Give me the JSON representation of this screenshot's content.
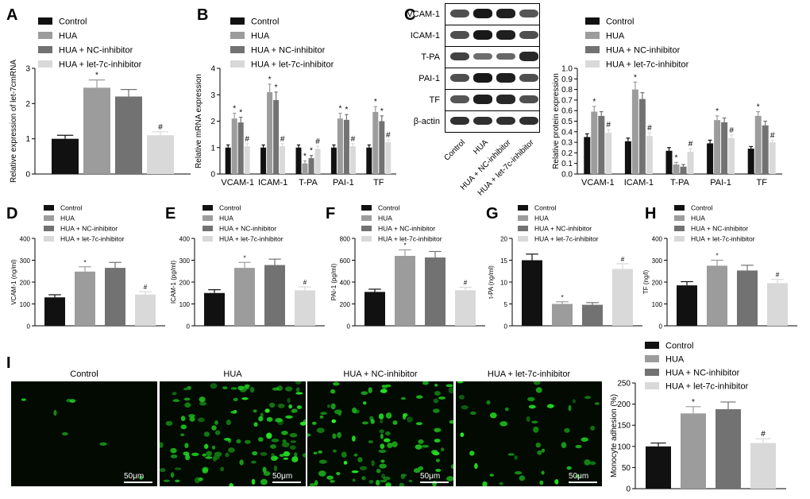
{
  "colors": {
    "Control": "#111111",
    "HUA": "#9c9c9c",
    "HUA + NC-inhibitor": "#727272",
    "HUA + let-7c-inhibitor": "#d9d9d9"
  },
  "series_names": [
    "Control",
    "HUA",
    "HUA + NC-inhibitor",
    "HUA + let-7c-inhibitor"
  ],
  "panel_letters": {
    "A": "A",
    "B": "B",
    "C": "C",
    "D": "D",
    "E": "E",
    "F": "F",
    "G": "G",
    "H": "H",
    "I": "I"
  },
  "blot": {
    "proteins": [
      "VCAM-1",
      "ICAM-1",
      "T-PA",
      "PAI-1",
      "TF",
      "β-actin"
    ],
    "lanes": [
      "Control",
      "HUA",
      "HUA + NC-inhibitor",
      "HUA + let-7c-inhibitor"
    ],
    "intensity": [
      [
        0.6,
        0.95,
        0.9,
        0.55
      ],
      [
        0.6,
        0.95,
        0.9,
        0.6
      ],
      [
        0.7,
        0.4,
        0.45,
        0.85
      ],
      [
        0.6,
        0.95,
        0.9,
        0.6
      ],
      [
        0.55,
        0.9,
        0.85,
        0.6
      ],
      [
        0.8,
        0.8,
        0.8,
        0.8
      ]
    ]
  },
  "micro": {
    "titles": [
      "Control",
      "HUA",
      "HUA + NC-inhibitor",
      "HUA + let-7c-inhibitor"
    ],
    "scale": "50μm",
    "cell_density": [
      0.05,
      0.9,
      0.8,
      0.35
    ]
  },
  "chart_data": [
    {
      "id": "A",
      "type": "bar",
      "ylabel": "Relative expression of let-7cmRNA",
      "ylim": [
        0,
        3
      ],
      "yticks": [
        0,
        1,
        2,
        3
      ],
      "categories": [
        ""
      ],
      "series": [
        {
          "name": "Control",
          "values": [
            1.0
          ],
          "err": [
            0.1
          ]
        },
        {
          "name": "HUA",
          "values": [
            2.45
          ],
          "err": [
            0.22
          ]
        },
        {
          "name": "HUA + NC-inhibitor",
          "values": [
            2.2
          ],
          "err": [
            0.2
          ]
        },
        {
          "name": "HUA + let-7c-inhibitor",
          "values": [
            1.1
          ],
          "err": [
            0.1
          ]
        }
      ],
      "annotations": [
        "",
        "*",
        "",
        "#"
      ]
    },
    {
      "id": "B",
      "type": "bar",
      "ylabel": "Relative mRNA expression",
      "ylim": [
        0,
        4
      ],
      "yticks": [
        0,
        1,
        2,
        3,
        4
      ],
      "categories": [
        "VCAM-1",
        "ICAM-1",
        "T-PA",
        "PAI-1",
        "TF"
      ],
      "series": [
        {
          "name": "Control",
          "values": [
            1.0,
            1.0,
            1.0,
            1.0,
            1.0
          ],
          "err": [
            0.1,
            0.1,
            0.1,
            0.1,
            0.1
          ]
        },
        {
          "name": "HUA",
          "values": [
            2.1,
            3.1,
            0.4,
            2.1,
            2.35
          ],
          "err": [
            0.2,
            0.3,
            0.1,
            0.2,
            0.2
          ]
        },
        {
          "name": "HUA + NC-inhibitor",
          "values": [
            1.95,
            2.8,
            0.6,
            2.05,
            2.0
          ],
          "err": [
            0.2,
            0.3,
            0.1,
            0.2,
            0.2
          ]
        },
        {
          "name": "HUA + let-7c-inhibitor",
          "values": [
            1.05,
            1.05,
            0.95,
            1.05,
            1.2
          ],
          "err": [
            0.1,
            0.1,
            0.1,
            0.1,
            0.1
          ]
        }
      ],
      "annotations": [
        "",
        "*",
        "*",
        "#"
      ]
    },
    {
      "id": "C",
      "type": "bar",
      "ylabel": "Relative protein expression",
      "ylim": [
        0,
        1.0
      ],
      "yticks": [
        0.0,
        0.1,
        0.2,
        0.3,
        0.4,
        0.5,
        0.6,
        0.7,
        0.8,
        0.9,
        1.0
      ],
      "categories": [
        "VCAM-1",
        "ICAM-1",
        "T-PA",
        "PAI-1",
        "TF"
      ],
      "series": [
        {
          "name": "Control",
          "values": [
            0.35,
            0.31,
            0.22,
            0.29,
            0.24
          ],
          "err": [
            0.03,
            0.03,
            0.03,
            0.03,
            0.02
          ]
        },
        {
          "name": "HUA",
          "values": [
            0.59,
            0.8,
            0.09,
            0.51,
            0.55
          ],
          "err": [
            0.05,
            0.07,
            0.02,
            0.04,
            0.04
          ]
        },
        {
          "name": "HUA + NC-inhibitor",
          "values": [
            0.55,
            0.71,
            0.07,
            0.49,
            0.46
          ],
          "err": [
            0.04,
            0.06,
            0.02,
            0.04,
            0.04
          ]
        },
        {
          "name": "HUA + let-7c-inhibitor",
          "values": [
            0.39,
            0.36,
            0.21,
            0.34,
            0.3
          ],
          "err": [
            0.03,
            0.03,
            0.03,
            0.03,
            0.02
          ]
        }
      ],
      "annotations": [
        "",
        "*",
        "",
        "#"
      ]
    },
    {
      "id": "D",
      "type": "bar",
      "ylabel": "VCAM-1 (ng/ml)",
      "ylim": [
        0,
        400
      ],
      "yticks": [
        0,
        100,
        200,
        300,
        400
      ],
      "categories": [
        ""
      ],
      "series": [
        {
          "name": "Control",
          "values": [
            130
          ],
          "err": [
            12
          ]
        },
        {
          "name": "HUA",
          "values": [
            248
          ],
          "err": [
            22
          ]
        },
        {
          "name": "HUA + NC-inhibitor",
          "values": [
            265
          ],
          "err": [
            25
          ]
        },
        {
          "name": "HUA + let-7c-inhibitor",
          "values": [
            143
          ],
          "err": [
            13
          ]
        }
      ],
      "annotations": [
        "",
        "*",
        "",
        "#"
      ]
    },
    {
      "id": "E",
      "type": "bar",
      "ylabel": "ICAM-1 (pg/ml)",
      "ylim": [
        0,
        400
      ],
      "yticks": [
        0,
        100,
        200,
        300,
        400
      ],
      "categories": [
        ""
      ],
      "series": [
        {
          "name": "Control",
          "values": [
            150
          ],
          "err": [
            15
          ]
        },
        {
          "name": "HUA",
          "values": [
            265
          ],
          "err": [
            25
          ]
        },
        {
          "name": "HUA + NC-inhibitor",
          "values": [
            278
          ],
          "err": [
            27
          ]
        },
        {
          "name": "HUA + let-7c-inhibitor",
          "values": [
            162
          ],
          "err": [
            16
          ]
        }
      ],
      "annotations": [
        "",
        "*",
        "",
        "#"
      ]
    },
    {
      "id": "F",
      "type": "bar",
      "ylabel": "PAI-1 (pg/ml)",
      "ylim": [
        0,
        800
      ],
      "yticks": [
        0,
        200,
        400,
        600,
        800
      ],
      "categories": [
        ""
      ],
      "series": [
        {
          "name": "Control",
          "values": [
            310
          ],
          "err": [
            25
          ]
        },
        {
          "name": "HUA",
          "values": [
            640
          ],
          "err": [
            55
          ]
        },
        {
          "name": "HUA + NC-inhibitor",
          "values": [
            625
          ],
          "err": [
            55
          ]
        },
        {
          "name": "HUA + let-7c-inhibitor",
          "values": [
            325
          ],
          "err": [
            28
          ]
        }
      ],
      "annotations": [
        "",
        "*",
        "",
        "#"
      ]
    },
    {
      "id": "G",
      "type": "bar",
      "ylabel": "t-PA (ng/ml)",
      "ylim": [
        0,
        20
      ],
      "yticks": [
        0,
        5,
        10,
        15,
        20
      ],
      "categories": [
        ""
      ],
      "series": [
        {
          "name": "Control",
          "values": [
            15.0
          ],
          "err": [
            1.4
          ]
        },
        {
          "name": "HUA",
          "values": [
            5.0
          ],
          "err": [
            0.5
          ]
        },
        {
          "name": "HUA + NC-inhibitor",
          "values": [
            4.8
          ],
          "err": [
            0.5
          ]
        },
        {
          "name": "HUA + let-7c-inhibitor",
          "values": [
            13.0
          ],
          "err": [
            1.2
          ]
        }
      ],
      "annotations": [
        "",
        "*",
        "",
        "#"
      ]
    },
    {
      "id": "H",
      "type": "bar",
      "ylabel": "TF (ng/l)",
      "ylim": [
        0,
        400
      ],
      "yticks": [
        0,
        100,
        200,
        300,
        400
      ],
      "categories": [
        ""
      ],
      "series": [
        {
          "name": "Control",
          "values": [
            185
          ],
          "err": [
            17
          ]
        },
        {
          "name": "HUA",
          "values": [
            275
          ],
          "err": [
            25
          ]
        },
        {
          "name": "HUA + NC-inhibitor",
          "values": [
            253
          ],
          "err": [
            24
          ]
        },
        {
          "name": "HUA + let-7c-inhibitor",
          "values": [
            195
          ],
          "err": [
            17
          ]
        }
      ],
      "annotations": [
        "",
        "*",
        "",
        "#"
      ]
    },
    {
      "id": "I",
      "type": "bar",
      "ylabel": "Monocyte adhesion (%)",
      "ylim": [
        0,
        250
      ],
      "yticks": [
        0,
        50,
        100,
        150,
        200,
        250
      ],
      "categories": [
        ""
      ],
      "series": [
        {
          "name": "Control",
          "values": [
            100
          ],
          "err": [
            8
          ]
        },
        {
          "name": "HUA",
          "values": [
            178
          ],
          "err": [
            16
          ]
        },
        {
          "name": "HUA + NC-inhibitor",
          "values": [
            188
          ],
          "err": [
            17
          ]
        },
        {
          "name": "HUA + let-7c-inhibitor",
          "values": [
            108
          ],
          "err": [
            10
          ]
        }
      ],
      "annotations": [
        "",
        "*",
        "",
        "#"
      ]
    }
  ]
}
